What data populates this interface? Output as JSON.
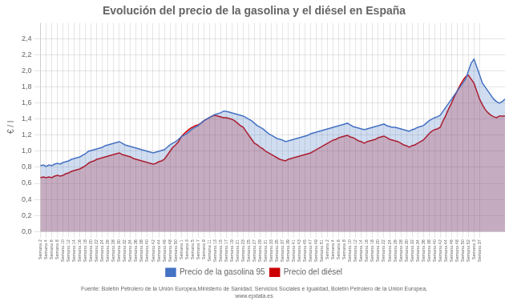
{
  "chart_data": {
    "type": "area",
    "title": "Evolución del precio de la gasolina y el diésel en España",
    "ylabel": "€ / l",
    "footer": [
      "Fuente: Boletín Petrolero de la Unión Europea,Ministerio de Sanidad, Servicios Sociales e Igualdad, Boletín Petrolero de la Unión Europea,",
      "www.epdata.es"
    ],
    "categories": [
      "Semana\n2",
      null,
      "Semana\n4",
      null,
      "Semana\n6",
      null,
      "Semana\n8",
      null,
      "Semana\n10",
      null,
      "Semana\n12",
      null,
      "Semana\n14",
      null,
      "Semana\n16",
      null,
      "Semana\n18",
      null,
      "Semana\n20",
      null,
      "Semana\n22",
      null,
      "Semana\n24",
      null,
      "Semana\n26",
      null,
      "Semana\n28",
      null,
      "Semana\n30",
      null,
      "Semana\n32",
      null,
      "Semana\n34",
      null,
      "Semana\n36",
      null,
      "Semana\n38",
      null,
      "Semana\n40",
      null,
      "Semana\n42",
      null,
      "Semana\n44",
      null,
      "Semana\n46",
      null,
      "Semana\n48",
      null,
      "Semana\n50",
      null,
      "Semana\n1",
      null,
      "Semana\n3",
      null,
      "Semana\n5",
      null,
      "Semana\n7",
      null,
      "Semana\n9",
      null,
      "Semana\n11",
      null,
      "Semana\n13",
      null,
      "Semana\n15",
      null,
      "Semana\n17",
      null,
      "Semana\n19",
      null,
      "Semana\n21",
      null,
      "Semana\n23",
      null,
      "Semana\n25",
      null,
      "Semana\n27",
      null,
      "Semana\n29",
      null,
      "Semana\n31",
      null,
      "Semana\n33",
      null,
      "Semana\n35",
      null,
      "Semana\n37",
      null,
      "Semana\n39",
      null,
      "Semana\n41",
      null,
      "Semana\n43",
      null,
      "Semana\n45",
      null,
      "Semana\n47",
      null,
      "Semana\n49",
      null,
      "Semana\n51",
      null,
      "Semana\n2",
      null,
      "Semana\n4",
      null,
      "Semana\n6",
      null,
      "Semana\n8",
      null,
      "Semana\n10",
      null,
      "Semana\n12",
      null,
      "Semana\n14",
      null,
      "Semana\n16",
      null,
      "Semana\n18",
      null,
      "Semana\n20",
      null,
      "Semana\n22",
      null,
      "Semana\n24",
      null,
      "Semana\n26",
      null,
      "Semana\n28",
      null,
      "Semana\n30",
      null,
      "Semana\n32",
      null,
      "Semana\n34",
      null,
      "Semana\n36",
      null,
      "Semana\n38",
      null,
      "Semana\n40",
      null,
      "Semana\n42",
      null,
      "Semana\n44",
      null,
      "Semana\n46",
      null,
      "Semana\n48",
      null,
      "Semana\n50",
      null,
      "Semana\n52",
      null,
      "Semana\n3",
      null,
      "Semana\n37",
      null,
      null,
      null,
      null,
      null,
      null,
      null,
      null,
      null
    ],
    "series": [
      {
        "name": "Precio de la gasolina 95",
        "color": "#4472C4",
        "values": [
          0.82,
          0.83,
          0.81,
          0.83,
          0.82,
          0.84,
          0.85,
          0.84,
          0.86,
          0.87,
          0.88,
          0.9,
          0.91,
          0.92,
          0.93,
          0.95,
          0.97,
          1.0,
          1.01,
          1.02,
          1.03,
          1.04,
          1.05,
          1.07,
          1.08,
          1.09,
          1.1,
          1.11,
          1.12,
          1.1,
          1.08,
          1.07,
          1.06,
          1.05,
          1.04,
          1.03,
          1.02,
          1.01,
          1.0,
          0.99,
          0.98,
          0.99,
          1.0,
          1.01,
          1.02,
          1.05,
          1.08,
          1.1,
          1.12,
          1.15,
          1.18,
          1.2,
          1.22,
          1.25,
          1.28,
          1.3,
          1.32,
          1.35,
          1.38,
          1.4,
          1.42,
          1.44,
          1.46,
          1.47,
          1.48,
          1.5,
          1.5,
          1.49,
          1.48,
          1.47,
          1.46,
          1.45,
          1.44,
          1.42,
          1.4,
          1.38,
          1.35,
          1.32,
          1.3,
          1.28,
          1.25,
          1.22,
          1.2,
          1.18,
          1.16,
          1.15,
          1.14,
          1.12,
          1.13,
          1.14,
          1.15,
          1.16,
          1.17,
          1.18,
          1.19,
          1.2,
          1.22,
          1.23,
          1.24,
          1.25,
          1.26,
          1.27,
          1.28,
          1.29,
          1.3,
          1.31,
          1.32,
          1.33,
          1.34,
          1.35,
          1.33,
          1.31,
          1.3,
          1.29,
          1.28,
          1.27,
          1.28,
          1.29,
          1.3,
          1.31,
          1.32,
          1.33,
          1.34,
          1.32,
          1.31,
          1.3,
          1.3,
          1.29,
          1.28,
          1.27,
          1.26,
          1.25,
          1.27,
          1.28,
          1.3,
          1.31,
          1.32,
          1.35,
          1.38,
          1.4,
          1.42,
          1.43,
          1.45,
          1.5,
          1.55,
          1.6,
          1.65,
          1.7,
          1.75,
          1.8,
          1.85,
          1.9,
          2.0,
          2.1,
          2.15,
          2.05,
          1.95,
          1.85,
          1.8,
          1.75,
          1.7,
          1.65,
          1.62,
          1.6,
          1.62,
          1.65
        ]
      },
      {
        "name": "Precio del diésel",
        "color": "#CC0000",
        "values": [
          0.67,
          0.68,
          0.67,
          0.68,
          0.67,
          0.69,
          0.7,
          0.69,
          0.7,
          0.72,
          0.73,
          0.75,
          0.76,
          0.77,
          0.78,
          0.8,
          0.82,
          0.85,
          0.87,
          0.88,
          0.9,
          0.91,
          0.92,
          0.93,
          0.94,
          0.95,
          0.96,
          0.97,
          0.98,
          0.96,
          0.95,
          0.94,
          0.93,
          0.91,
          0.9,
          0.89,
          0.88,
          0.87,
          0.86,
          0.85,
          0.84,
          0.85,
          0.87,
          0.88,
          0.9,
          0.95,
          1.0,
          1.05,
          1.08,
          1.12,
          1.18,
          1.22,
          1.25,
          1.28,
          1.3,
          1.32,
          1.33,
          1.35,
          1.38,
          1.4,
          1.42,
          1.44,
          1.45,
          1.44,
          1.43,
          1.42,
          1.42,
          1.41,
          1.4,
          1.38,
          1.35,
          1.32,
          1.3,
          1.25,
          1.2,
          1.15,
          1.1,
          1.08,
          1.05,
          1.03,
          1.0,
          0.98,
          0.96,
          0.94,
          0.92,
          0.9,
          0.89,
          0.88,
          0.9,
          0.91,
          0.92,
          0.93,
          0.94,
          0.95,
          0.96,
          0.97,
          0.98,
          1.0,
          1.02,
          1.04,
          1.06,
          1.08,
          1.1,
          1.12,
          1.14,
          1.15,
          1.17,
          1.18,
          1.19,
          1.2,
          1.18,
          1.17,
          1.15,
          1.13,
          1.12,
          1.1,
          1.12,
          1.13,
          1.14,
          1.15,
          1.17,
          1.18,
          1.19,
          1.17,
          1.15,
          1.14,
          1.13,
          1.12,
          1.1,
          1.08,
          1.07,
          1.05,
          1.07,
          1.08,
          1.1,
          1.12,
          1.14,
          1.18,
          1.22,
          1.25,
          1.27,
          1.28,
          1.3,
          1.38,
          1.45,
          1.53,
          1.6,
          1.68,
          1.75,
          1.82,
          1.88,
          1.93,
          1.95,
          1.9,
          1.85,
          1.75,
          1.65,
          1.58,
          1.52,
          1.48,
          1.45,
          1.43,
          1.42,
          1.44,
          1.44,
          1.44
        ]
      }
    ],
    "ylim": [
      0,
      2.6
    ],
    "yticks": [
      {
        "value": 0,
        "label": "0,0"
      },
      {
        "value": 0.2,
        "label": "0,2"
      },
      {
        "value": 0.4,
        "label": "0,4"
      },
      {
        "value": 0.6,
        "label": "0,6"
      },
      {
        "value": 0.8,
        "label": "0,8"
      },
      {
        "value": 1.0,
        "label": "1,0"
      },
      {
        "value": 1.2,
        "label": "1,2"
      },
      {
        "value": 1.4,
        "label": "1,4"
      },
      {
        "value": 1.6,
        "label": "1,6"
      },
      {
        "value": 1.8,
        "label": "1,8"
      },
      {
        "value": 2.0,
        "label": "2,0"
      },
      {
        "value": 2.2,
        "label": "2,2"
      },
      {
        "value": 2.4,
        "label": "2,4"
      }
    ],
    "grid": true,
    "legend": "bottom"
  }
}
